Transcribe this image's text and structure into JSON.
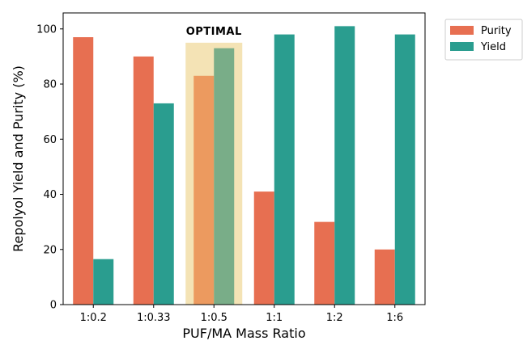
{
  "chart_data": {
    "type": "bar",
    "categories": [
      "1:0.2",
      "1:0.33",
      "1:0.5",
      "1:1",
      "1:2",
      "1:6"
    ],
    "series": [
      {
        "name": "Purity",
        "values": [
          97,
          90,
          83,
          41,
          30,
          20
        ],
        "color": "#e76f51"
      },
      {
        "name": "Yield",
        "values": [
          16.5,
          73,
          93,
          98,
          101,
          98
        ],
        "color": "#2a9d8f"
      }
    ],
    "highlight": {
      "category": "1:0.5",
      "label": "OPTIMAL",
      "band_color": "#f4e3b5",
      "highlighted_colors": {
        "Purity": "#ec9a5f",
        "Yield": "#79ad88"
      }
    },
    "title": "",
    "xlabel": "PUF/MA Mass Ratio",
    "ylabel": "Repolyol Yield and Purity (%)",
    "ylim": [
      0,
      105.8
    ],
    "yticks": [
      0,
      20,
      40,
      60,
      80,
      100
    ],
    "grid": false,
    "legend_position": "outside-top-right"
  }
}
